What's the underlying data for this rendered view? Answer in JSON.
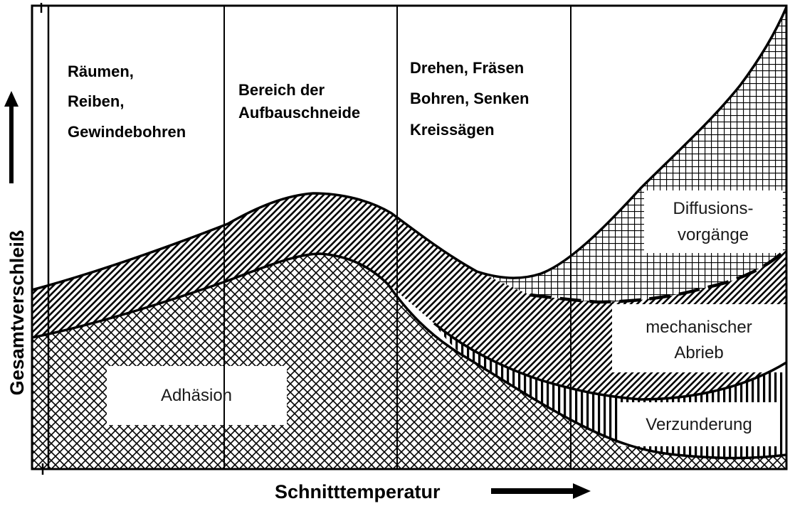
{
  "axes": {
    "y_label": "Gesamtverschleiß",
    "x_label": "Schnitttemperatur"
  },
  "zones": [
    {
      "lines": [
        "Räumen,",
        "Reiben,",
        "Gewindebohren"
      ]
    },
    {
      "lines": [
        "Bereich der",
        "Aufbauschneide"
      ]
    },
    {
      "lines": [
        "Drehen, Fräsen",
        "Bohren, Senken",
        "Kreissägen"
      ]
    },
    {
      "lines": []
    }
  ],
  "mechanisms": {
    "diffusion": [
      "Diffusions-",
      "vorgänge"
    ],
    "abrasion": [
      "mechanischer",
      "Abrieb"
    ],
    "oxidation": [
      "Verzunderung"
    ],
    "adhesion": [
      "Adhäsion"
    ]
  },
  "colors": {
    "ink": "#000000",
    "background": "#ffffff"
  }
}
